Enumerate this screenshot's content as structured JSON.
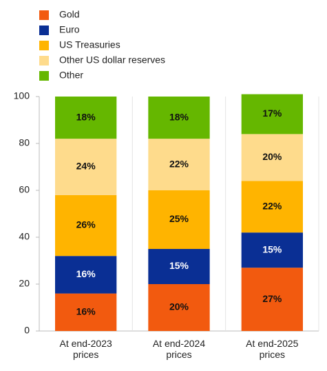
{
  "chart_data": {
    "type": "stacked_bar",
    "categories": [
      "At end-2023 prices",
      "At end-2024 prices",
      "At end-2025 prices"
    ],
    "series": [
      {
        "name": "Gold",
        "color": "#f25a0f",
        "values": [
          16,
          20,
          27
        ],
        "value_labels": [
          "16%",
          "20%",
          "27%"
        ]
      },
      {
        "name": "Euro",
        "color": "#0a2f94",
        "values": [
          16,
          15,
          15
        ],
        "value_labels": [
          "16%",
          "15%",
          "15%"
        ]
      },
      {
        "name": "US Treasuries",
        "color": "#ffb400",
        "values": [
          26,
          25,
          22
        ],
        "value_labels": [
          "26%",
          "25%",
          "22%"
        ]
      },
      {
        "name": "Other US dollar reserves",
        "color": "#fedb8c",
        "values": [
          24,
          22,
          20
        ],
        "value_labels": [
          "24%",
          "22%",
          "20%"
        ]
      },
      {
        "name": "Other",
        "color": "#65b700",
        "values": [
          18,
          18,
          17
        ],
        "value_labels": [
          "18%",
          "18%",
          "17%"
        ]
      }
    ],
    "ylim": [
      0,
      100
    ],
    "yticks": [
      0,
      20,
      40,
      60,
      80,
      100
    ],
    "legend": "top-left"
  }
}
